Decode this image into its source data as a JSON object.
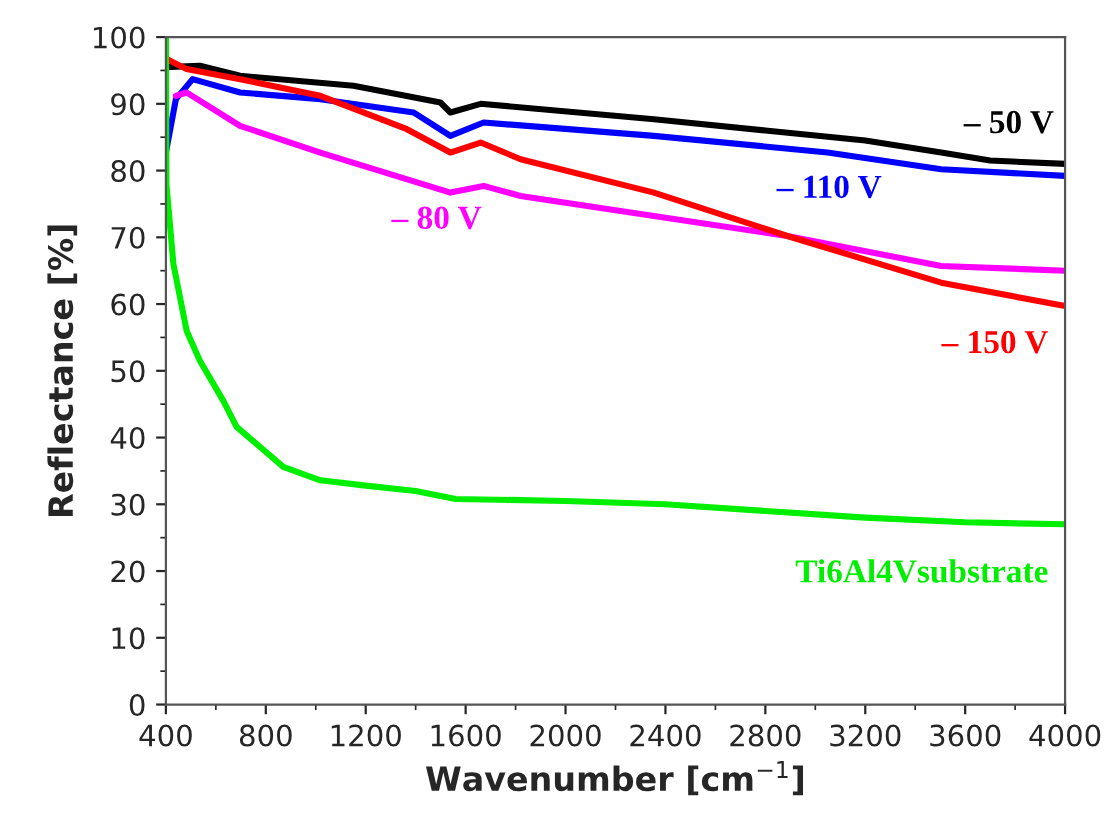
{
  "chart_data": {
    "type": "line",
    "xlabel": "Wavenumber [cm$^{−1}$]",
    "ylabel": "Reflectance [%]",
    "xlim": [
      400,
      4000
    ],
    "xticks": [
      400,
      800,
      1200,
      1600,
      2000,
      2400,
      2800,
      3200,
      3600,
      4000
    ],
    "ylim": [
      0,
      100
    ],
    "yticks": [
      0,
      10,
      20,
      30,
      40,
      50,
      60,
      70,
      80,
      90,
      100
    ],
    "grid": false,
    "legend": false,
    "marker": "none",
    "line_style": "solid",
    "series": [
      {
        "name": "– 50 V",
        "color": "#000000",
        "x": [
          400,
          536,
          697,
          1151,
          1499,
          1539,
          1660,
          2354,
          2800,
          3200,
          3504,
          3700,
          4000
        ],
        "values": [
          95.5,
          95.7,
          94.2,
          92.7,
          90.2,
          88.7,
          90,
          87.7,
          86,
          84.5,
          82.7,
          81.5,
          81
        ]
      },
      {
        "name": "– 110 V",
        "color": "#0000ff",
        "x": [
          400,
          440,
          507,
          697,
          1018,
          1392,
          1539,
          1672,
          2354,
          3049,
          3504,
          4000
        ],
        "values": [
          82.7,
          90.7,
          93.7,
          91.7,
          90.7,
          88.7,
          85.2,
          87.2,
          85.2,
          82.7,
          80.2,
          79.2
        ]
      },
      {
        "name": "– 80 V",
        "color": "#ff00ff",
        "x": [
          440,
          483,
          697,
          1018,
          1539,
          1672,
          1820,
          2354,
          2888,
          3504,
          4000
        ],
        "values": [
          91.2,
          91.7,
          86.7,
          82.7,
          76.7,
          77.7,
          76.2,
          73.2,
          70.2,
          65.7,
          65
        ]
      },
      {
        "name": "– 150 V",
        "color": "#ff0000",
        "x": [
          403,
          483,
          697,
          1018,
          1365,
          1539,
          1660,
          1820,
          2354,
          2888,
          3504,
          4000
        ],
        "values": [
          96.7,
          95.2,
          93.7,
          91.2,
          86.2,
          82.7,
          84.2,
          81.7,
          76.7,
          70.2,
          63.2,
          59.7
        ]
      },
      {
        "name": "Ti6Al4Vsubstrate",
        "color": "#00ee00",
        "x": [
          400,
          402,
          430,
          483,
          536,
          630,
          683,
          870,
          1018,
          1200,
          1400,
          1560,
          2000,
          2400,
          2800,
          3200,
          3600,
          4000
        ],
        "values": [
          100,
          78,
          66,
          56,
          51.5,
          45.5,
          41.6,
          35.6,
          33.6,
          32.8,
          32,
          30.8,
          30.5,
          30,
          29,
          28,
          27.3,
          27
        ]
      }
    ]
  }
}
